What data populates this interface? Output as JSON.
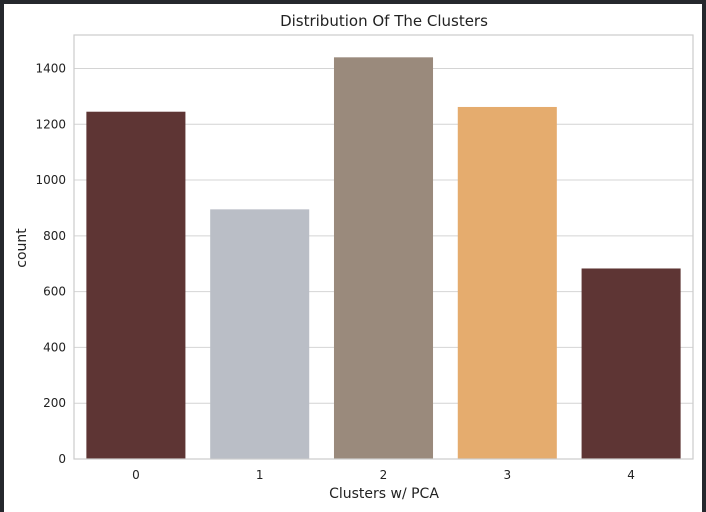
{
  "chart_data": {
    "type": "bar",
    "title": "Distribution Of The Clusters",
    "xlabel": "Clusters w/ PCA",
    "ylabel": "count",
    "categories": [
      "0",
      "1",
      "2",
      "3",
      "4"
    ],
    "values": [
      1245,
      895,
      1440,
      1262,
      683
    ],
    "colors": [
      "#5e3534",
      "#babec6",
      "#9a8a7c",
      "#e5ac6e",
      "#5e3534"
    ],
    "ylim": [
      0,
      1520
    ],
    "yticks": [
      0,
      200,
      400,
      600,
      800,
      1000,
      1200,
      1400
    ],
    "grid": true,
    "legend": "none"
  }
}
